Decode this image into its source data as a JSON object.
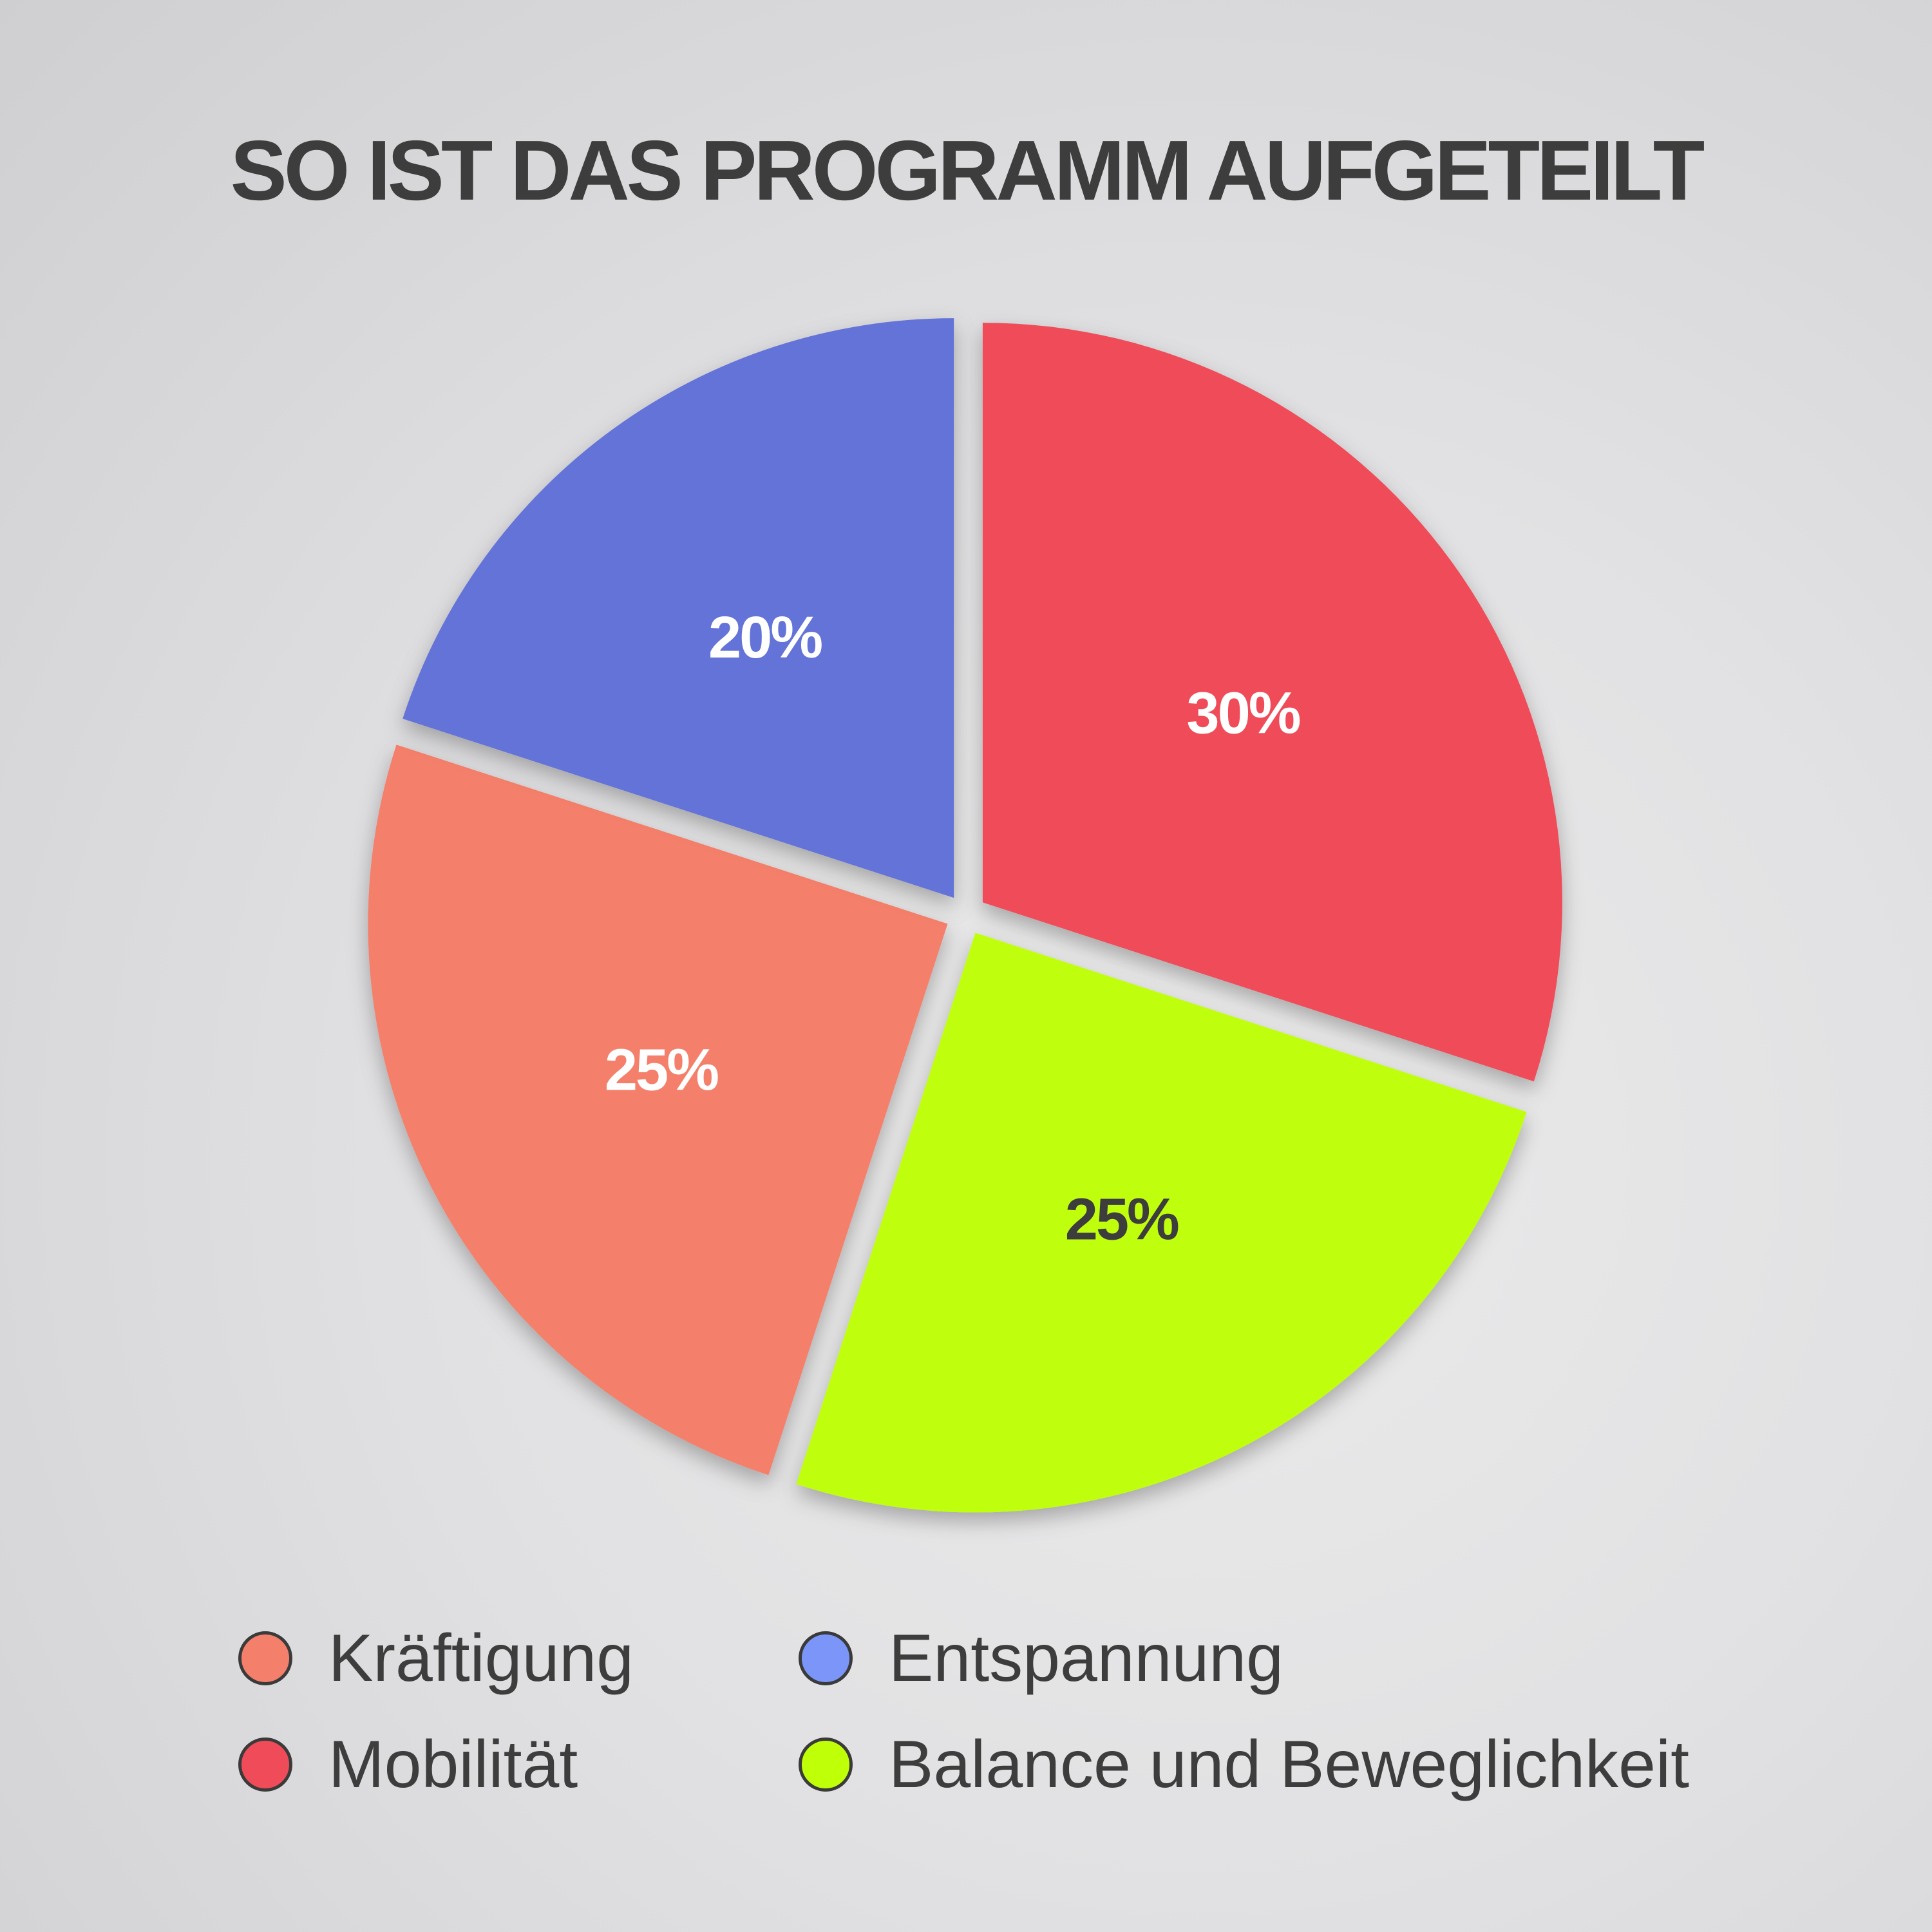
{
  "chart_data": {
    "type": "pie",
    "title": "SO IST DAS PROGRAMM AUFGETEILT",
    "slices": [
      {
        "name": "Mobilität",
        "value": 30,
        "label": "30%",
        "color": "#ef4b58",
        "label_color": "#ffffff"
      },
      {
        "name": "Balance und Beweglichkeit",
        "value": 25,
        "label": "25%",
        "color": "#bfff08",
        "label_color": "#3d3d3d"
      },
      {
        "name": "Kräftigung",
        "value": 25,
        "label": "25%",
        "color": "#f47f6b",
        "label_color": "#ffffff"
      },
      {
        "name": "Entspannung",
        "value": 20,
        "label": "20%",
        "color": "#6373d8",
        "label_color": "#ffffff"
      }
    ],
    "legend": {
      "placement": "bottom",
      "items": [
        {
          "label": "Kräftigung",
          "color": "#f47f6b"
        },
        {
          "label": "Entspannung",
          "color": "#7b96f8"
        },
        {
          "label": "Mobilität",
          "color": "#ef4b58"
        },
        {
          "label": "Balance und Beweglichkeit",
          "color": "#bfff08"
        }
      ]
    }
  }
}
